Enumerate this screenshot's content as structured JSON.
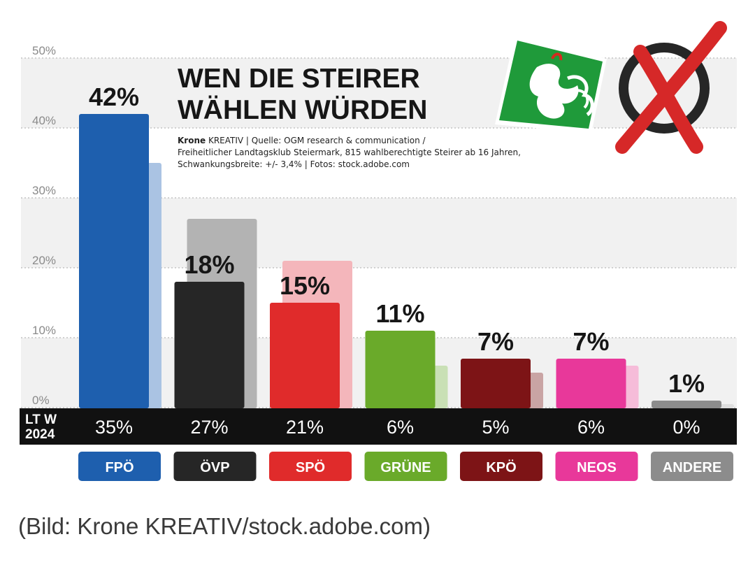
{
  "chart_data": {
    "type": "bar",
    "title_lines": [
      "WEN DIE STEIRER",
      "WÄHLEN WÜRDEN"
    ],
    "source_brand": "Krone",
    "source_lines": [
      " KREATIV | Quelle: OGM research & communication /",
      "Freiheitlicher Landtagsklub Steiermark, 815 wahlberechtigte Steirer ab 16 Jahren,",
      "Schwankungsbreite: +/- 3,4% | Fotos: stock.adobe.com"
    ],
    "yticks": [
      "0%",
      "10%",
      "20%",
      "30%",
      "40%",
      "50%"
    ],
    "ylim": [
      0,
      50
    ],
    "grid": true,
    "categories": [
      "FPÖ",
      "ÖVP",
      "SPÖ",
      "GRÜNE",
      "KPÖ",
      "NEOS",
      "ANDERE"
    ],
    "colors": [
      "#1e5fae",
      "#262626",
      "#e02b2b",
      "#6aaa2a",
      "#7d1416",
      "#e8389a",
      "#8c8c8c"
    ],
    "light_colors": [
      "#aac3e3",
      "#b3b3b3",
      "#f4b6bb",
      "#c9e0b5",
      "#c9a4a4",
      "#f6bcd9",
      "#dedede"
    ],
    "series": [
      {
        "values": [
          42,
          18,
          15,
          11,
          7,
          7,
          1
        ],
        "labels": [
          "42%",
          "18%",
          "15%",
          "11%",
          "7%",
          "7%",
          "1%"
        ]
      },
      {
        "name": "LT W 2024",
        "values": [
          35,
          27,
          21,
          6,
          5,
          6,
          0
        ],
        "labels": [
          "35%",
          "27%",
          "21%",
          "6%",
          "5%",
          "6%",
          "0%"
        ]
      }
    ],
    "row_label": [
      "LT W",
      "2024"
    ]
  },
  "caption": "(Bild: Krone KREATIV/stock.adobe.com)",
  "images": {
    "coat_of_arms": "styrian-panther-coat-of-arms",
    "ballot_cross": "red-ballot-cross-icon"
  }
}
